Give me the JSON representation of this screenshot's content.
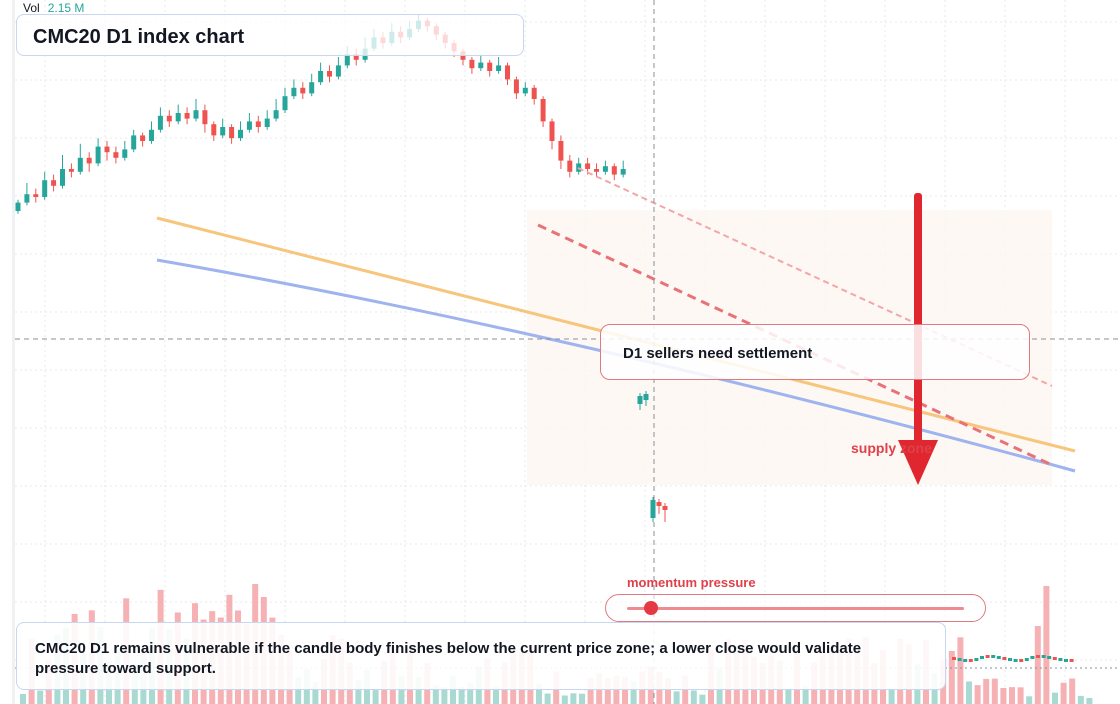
{
  "header": {
    "volume_label": "Vol",
    "volume_value": "2.15 M"
  },
  "title": "CMC20 D1 index chart",
  "callout": {
    "text": "D1 sellers need settlement"
  },
  "zone_label": "supply zone",
  "momentum": {
    "label": "momentum pressure",
    "level": 0.07
  },
  "summary": "CMC20 D1 remains vulnerable if the candle body finishes below the current price zone; a lower close would validate pressure toward support.",
  "colors": {
    "up": "#26a69a",
    "down": "#ef5350",
    "trend_orange": "#f7c57b",
    "trend_blue": "#9fb4ee",
    "channel_red": "#e97278",
    "arrow_red": "#e0262f"
  },
  "chart_data": {
    "type": "candlestick",
    "timeframe": "D1",
    "grid": true,
    "price_range": [
      0,
      100
    ],
    "candles": [
      [
        30,
        33,
        29,
        34
      ],
      [
        33,
        36,
        32,
        40
      ],
      [
        36,
        35,
        33,
        38
      ],
      [
        35,
        41,
        34,
        44
      ],
      [
        41,
        39,
        37,
        43
      ],
      [
        39,
        45,
        38,
        50
      ],
      [
        45,
        44,
        42,
        47
      ],
      [
        44,
        49,
        43,
        54
      ],
      [
        49,
        47,
        44,
        51
      ],
      [
        47,
        53,
        46,
        56
      ],
      [
        53,
        51,
        48,
        55
      ],
      [
        51,
        49,
        47,
        53
      ],
      [
        49,
        52,
        48,
        55
      ],
      [
        52,
        57,
        51,
        59
      ],
      [
        57,
        55,
        53,
        58
      ],
      [
        55,
        59,
        54,
        62
      ],
      [
        59,
        64,
        58,
        67
      ],
      [
        64,
        62,
        60,
        66
      ],
      [
        62,
        65,
        61,
        68
      ],
      [
        65,
        63,
        61,
        67
      ],
      [
        63,
        66,
        62,
        70
      ],
      [
        66,
        61,
        58,
        68
      ],
      [
        61,
        57,
        55,
        62
      ],
      [
        57,
        60,
        56,
        63
      ],
      [
        60,
        56,
        54,
        61
      ],
      [
        56,
        59,
        55,
        62
      ],
      [
        59,
        62,
        58,
        65
      ],
      [
        62,
        60,
        58,
        64
      ],
      [
        60,
        63,
        59,
        66
      ],
      [
        63,
        66,
        62,
        70
      ],
      [
        66,
        71,
        65,
        74
      ],
      [
        71,
        74,
        70,
        77
      ],
      [
        74,
        72,
        70,
        76
      ],
      [
        72,
        76,
        71,
        79
      ],
      [
        76,
        80,
        75,
        83
      ],
      [
        80,
        78,
        76,
        82
      ],
      [
        78,
        82,
        77,
        85
      ],
      [
        82,
        86,
        81,
        89
      ],
      [
        86,
        84,
        82,
        88
      ],
      [
        84,
        88,
        83,
        92
      ],
      [
        88,
        92,
        87,
        95
      ],
      [
        92,
        90,
        88,
        94
      ],
      [
        90,
        94,
        89,
        97
      ],
      [
        94,
        92,
        90,
        96
      ],
      [
        92,
        95,
        91,
        98
      ],
      [
        95,
        98,
        94,
        100
      ],
      [
        98,
        96,
        94,
        99
      ],
      [
        96,
        93,
        91,
        97
      ],
      [
        93,
        90,
        88,
        94
      ],
      [
        90,
        87,
        85,
        91
      ],
      [
        87,
        84,
        82,
        88
      ],
      [
        84,
        81,
        79,
        85
      ],
      [
        81,
        83,
        80,
        86
      ],
      [
        83,
        80,
        78,
        84
      ],
      [
        80,
        82,
        79,
        85
      ],
      [
        82,
        77,
        75,
        83
      ],
      [
        77,
        72,
        70,
        78
      ],
      [
        72,
        74,
        71,
        76
      ],
      [
        74,
        70,
        68,
        75
      ],
      [
        70,
        62,
        60,
        71
      ],
      [
        62,
        55,
        52,
        63
      ],
      [
        55,
        48,
        45,
        57
      ],
      [
        48,
        44,
        42,
        50
      ],
      [
        44,
        47,
        43,
        49
      ],
      [
        47,
        45,
        43,
        49
      ],
      [
        45,
        44,
        42,
        47
      ],
      [
        44,
        46,
        43,
        48
      ],
      [
        46,
        43,
        41,
        47
      ],
      [
        43,
        45,
        42,
        48
      ]
    ]
  }
}
